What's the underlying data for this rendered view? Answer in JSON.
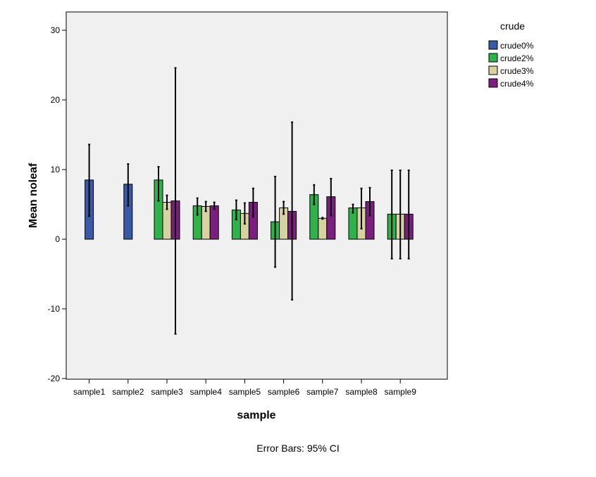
{
  "chart_data": {
    "type": "bar",
    "categories": [
      "sample1",
      "sample2",
      "sample3",
      "sample4",
      "sample5",
      "sample6",
      "sample7",
      "sample8",
      "sample9"
    ],
    "xlabel": "sample",
    "ylabel": "Mean noleaf",
    "ylim": [
      -20,
      32
    ],
    "yticks": [
      -20,
      -10,
      0,
      10,
      20,
      30
    ],
    "grid": false,
    "legend": {
      "title": "crude",
      "placement": "top-right outside plot"
    },
    "footnote": "Error Bars: 95% CI",
    "series": [
      {
        "name": "crude0%",
        "color": "#3a5aa8",
        "values": [
          8.5,
          7.9,
          null,
          null,
          null,
          null,
          null,
          null,
          null
        ],
        "ci_low": [
          3.3,
          4.8,
          null,
          null,
          null,
          null,
          null,
          null,
          null
        ],
        "ci_high": [
          13.6,
          10.8,
          null,
          null,
          null,
          null,
          null,
          null,
          null
        ]
      },
      {
        "name": "crude2%",
        "color": "#2fb24a",
        "values": [
          null,
          null,
          8.5,
          4.8,
          4.2,
          2.5,
          6.4,
          4.5,
          3.6
        ],
        "ci_low": [
          null,
          null,
          5.5,
          3.5,
          2.8,
          -4.0,
          5.0,
          3.8,
          -2.8
        ],
        "ci_high": [
          null,
          null,
          10.4,
          5.9,
          5.6,
          9.0,
          7.8,
          5.0,
          9.9
        ]
      },
      {
        "name": "crude3%",
        "color": "#d6d3a0",
        "values": [
          null,
          null,
          5.3,
          4.7,
          3.7,
          4.5,
          3.0,
          4.5,
          3.6
        ],
        "ci_low": [
          null,
          null,
          4.3,
          4.0,
          2.2,
          3.6,
          2.9,
          1.5,
          -2.8
        ],
        "ci_high": [
          null,
          null,
          6.3,
          5.4,
          5.2,
          5.4,
          3.1,
          7.3,
          9.9
        ]
      },
      {
        "name": "crude4%",
        "color": "#7b1e7e",
        "values": [
          null,
          null,
          5.5,
          4.8,
          5.3,
          4.0,
          6.1,
          5.4,
          3.6
        ],
        "ci_low": [
          null,
          null,
          -13.6,
          4.3,
          3.2,
          -8.7,
          3.4,
          3.4,
          -2.8
        ],
        "ci_high": [
          null,
          null,
          24.6,
          5.3,
          7.3,
          16.8,
          8.7,
          7.4,
          9.9
        ]
      }
    ]
  }
}
